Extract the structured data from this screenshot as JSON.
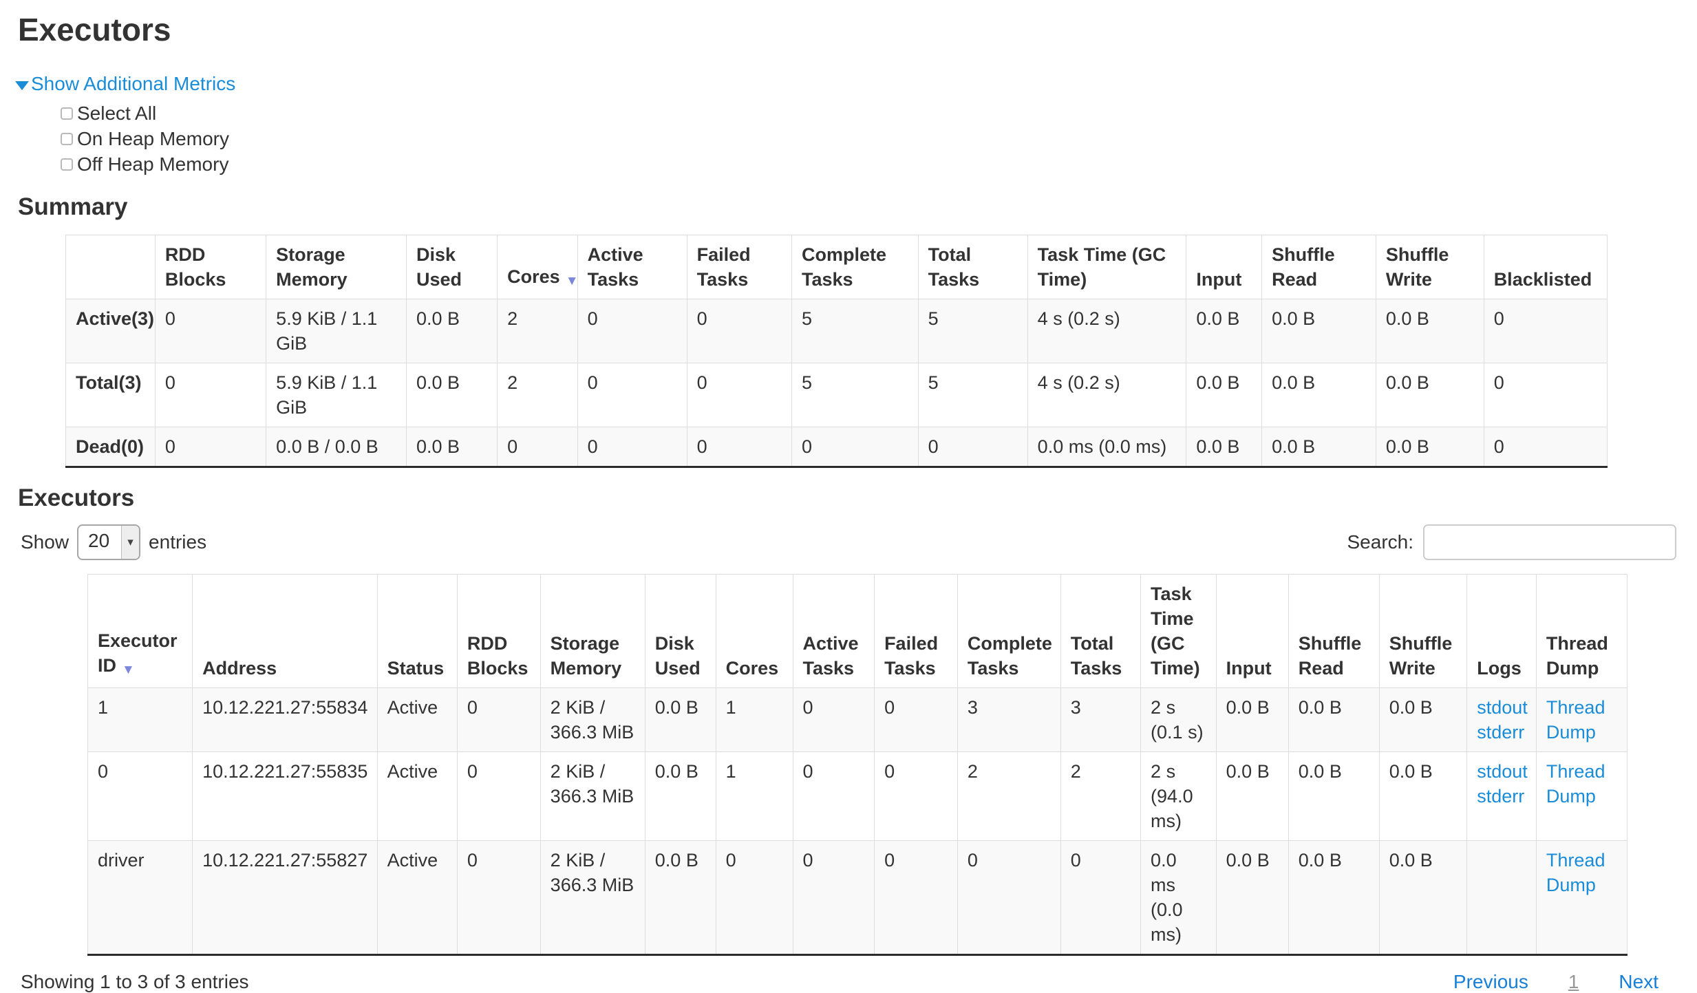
{
  "page": {
    "title": "Executors"
  },
  "metrics": {
    "toggle_label": "Show Additional Metrics",
    "checkboxes": [
      {
        "label": "Select All",
        "checked": false
      },
      {
        "label": "On Heap Memory",
        "checked": false
      },
      {
        "label": "Off Heap Memory",
        "checked": false
      }
    ]
  },
  "summary": {
    "heading": "Summary",
    "columns": [
      "",
      "RDD Blocks",
      "Storage Memory",
      "Disk Used",
      "Cores",
      "Active Tasks",
      "Failed Tasks",
      "Complete Tasks",
      "Total Tasks",
      "Task Time (GC Time)",
      "Input",
      "Shuffle Read",
      "Shuffle Write",
      "Blacklisted"
    ],
    "sorted_column": "Cores",
    "col_widths_pct": [
      5.8,
      7.2,
      9.1,
      5.9,
      5.2,
      7.1,
      6.8,
      8.2,
      7.1,
      10.3,
      4.9,
      7.4,
      7.0,
      8.0
    ],
    "rows": [
      {
        "label": "Active(3)",
        "values": [
          "0",
          "5.9 KiB / 1.1 GiB",
          "0.0 B",
          "2",
          "0",
          "0",
          "5",
          "5",
          "4 s (0.2 s)",
          "0.0 B",
          "0.0 B",
          "0.0 B",
          "0"
        ]
      },
      {
        "label": "Total(3)",
        "values": [
          "0",
          "5.9 KiB / 1.1 GiB",
          "0.0 B",
          "2",
          "0",
          "0",
          "5",
          "5",
          "4 s (0.2 s)",
          "0.0 B",
          "0.0 B",
          "0.0 B",
          "0"
        ]
      },
      {
        "label": "Dead(0)",
        "values": [
          "0",
          "0.0 B / 0.0 B",
          "0.0 B",
          "0",
          "0",
          "0",
          "0",
          "0",
          "0.0 ms (0.0 ms)",
          "0.0 B",
          "0.0 B",
          "0.0 B",
          "0"
        ]
      }
    ]
  },
  "executors": {
    "heading": "Executors",
    "show_label": "Show",
    "entries_value": "20",
    "entries_suffix": "entries",
    "search_label": "Search:",
    "search_value": "",
    "columns": [
      "Executor ID",
      "Address",
      "Status",
      "RDD Blocks",
      "Storage Memory",
      "Disk Used",
      "Cores",
      "Active Tasks",
      "Failed Tasks",
      "Complete Tasks",
      "Total Tasks",
      "Task Time (GC Time)",
      "Input",
      "Shuffle Read",
      "Shuffle Write",
      "Logs",
      "Thread Dump"
    ],
    "sorted_column": "Executor ID",
    "col_widths_pct": [
      6.8,
      12.0,
      5.2,
      5.4,
      6.8,
      4.6,
      5.0,
      5.3,
      5.4,
      6.7,
      5.2,
      4.9,
      4.7,
      5.9,
      5.7,
      4.5,
      5.9
    ],
    "rows": [
      {
        "cells": [
          "1",
          "10.12.221.27:55834",
          "Active",
          "0",
          "2 KiB / 366.3 MiB",
          "0.0 B",
          "1",
          "0",
          "0",
          "3",
          "3",
          "2 s (0.1 s)",
          "0.0 B",
          "0.0 B",
          "0.0 B"
        ],
        "logs": [
          "stdout",
          "stderr"
        ],
        "thread_dump": "Thread Dump"
      },
      {
        "cells": [
          "0",
          "10.12.221.27:55835",
          "Active",
          "0",
          "2 KiB / 366.3 MiB",
          "0.0 B",
          "1",
          "0",
          "0",
          "2",
          "2",
          "2 s (94.0 ms)",
          "0.0 B",
          "0.0 B",
          "0.0 B"
        ],
        "logs": [
          "stdout",
          "stderr"
        ],
        "thread_dump": "Thread Dump"
      },
      {
        "cells": [
          "driver",
          "10.12.221.27:55827",
          "Active",
          "0",
          "2 KiB / 366.3 MiB",
          "0.0 B",
          "0",
          "0",
          "0",
          "0",
          "0",
          "0.0 ms (0.0 ms)",
          "0.0 B",
          "0.0 B",
          "0.0 B"
        ],
        "logs": [],
        "thread_dump": "Thread Dump"
      }
    ],
    "footer": {
      "info": "Showing 1 to 3 of 3 entries",
      "previous": "Previous",
      "page": "1",
      "next": "Next"
    }
  },
  "colors": {
    "link_blue": "#1a8cd8",
    "pagination_blue": "#1780d6",
    "sort_arrow": "#7c86dd",
    "row_stripe": "#f9f9f9",
    "table_border": "#dddddd",
    "table_bottom_border": "#2b2b2b",
    "text": "#333333"
  }
}
